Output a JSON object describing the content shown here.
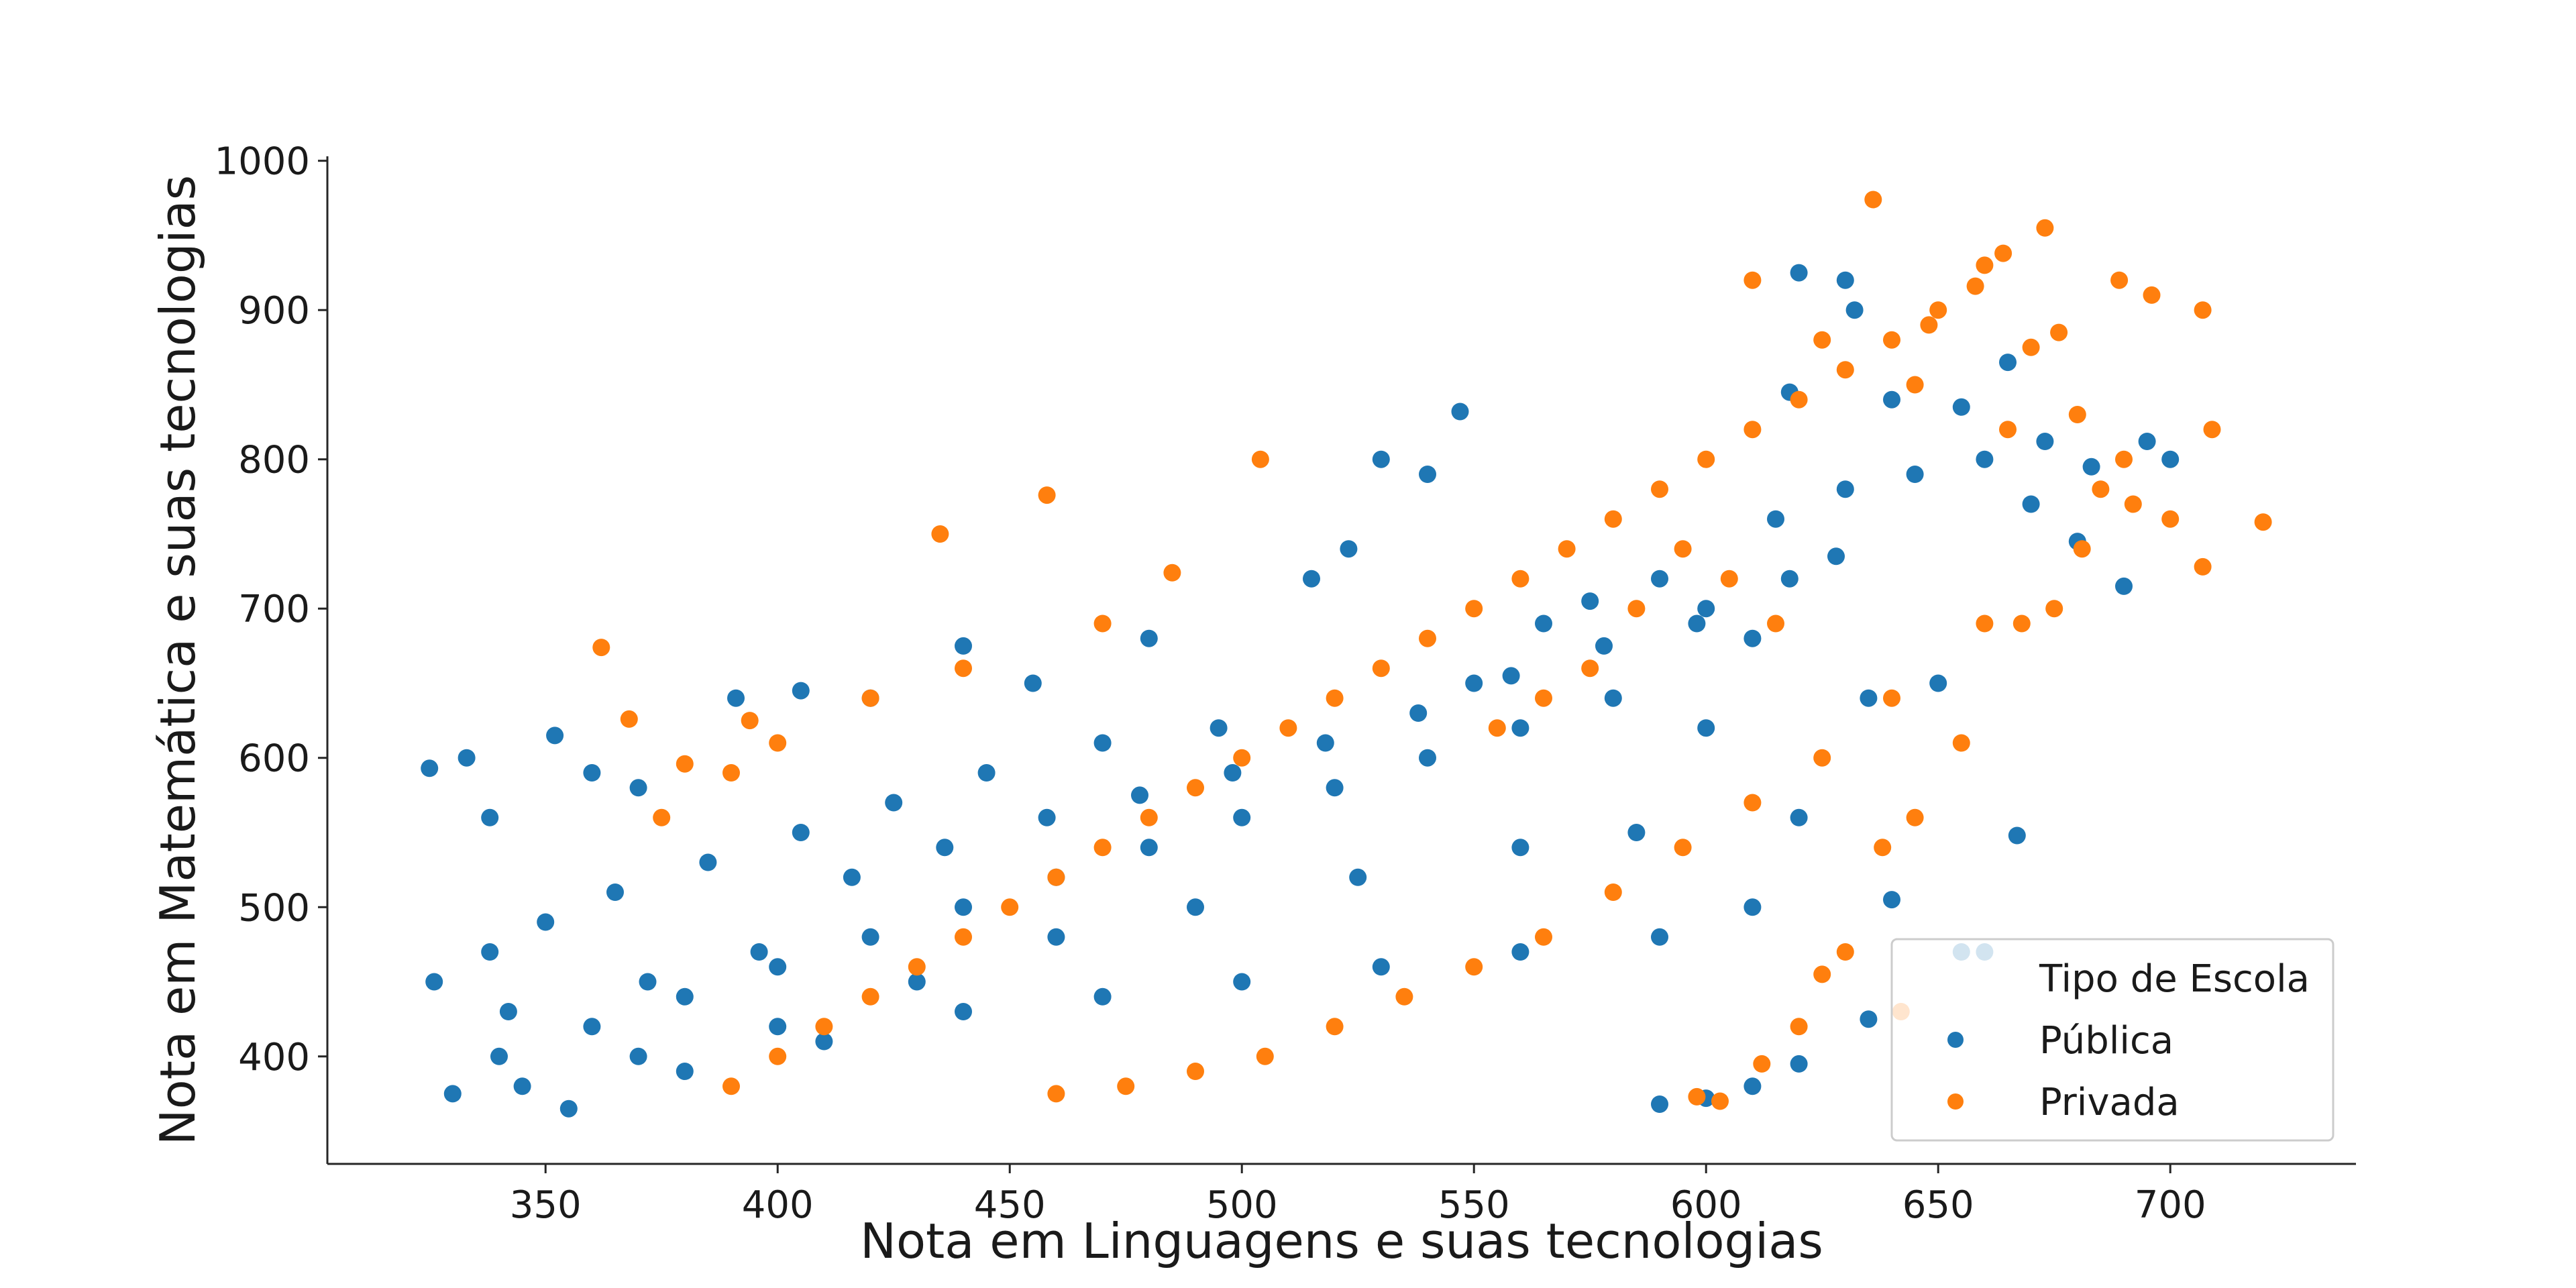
{
  "chart_data": {
    "type": "scatter",
    "title": "",
    "xlabel": "Nota em Linguagens e suas tecnologias",
    "ylabel": "Nota em Matemática e suas tecnologias",
    "xlim": [
      303,
      740
    ],
    "ylim": [
      328,
      1003
    ],
    "xticks": [
      350,
      400,
      450,
      500,
      550,
      600,
      650,
      700
    ],
    "yticks": [
      400,
      500,
      600,
      700,
      800,
      900,
      1000
    ],
    "grid": false,
    "legend": {
      "title": "Tipo de Escola",
      "placement": "lower-right",
      "entries": [
        "Pública",
        "Privada"
      ]
    },
    "series": [
      {
        "name": "Pública",
        "color": "#1f77b4",
        "points": [
          [
            325,
            593
          ],
          [
            333,
            600
          ],
          [
            338,
            560
          ],
          [
            352,
            615
          ],
          [
            360,
            590
          ],
          [
            370,
            580
          ],
          [
            391,
            640
          ],
          [
            405,
            645
          ],
          [
            420,
            640
          ],
          [
            440,
            675
          ],
          [
            455,
            650
          ],
          [
            480,
            680
          ],
          [
            515,
            720
          ],
          [
            523,
            740
          ],
          [
            540,
            790
          ],
          [
            530,
            800
          ],
          [
            547,
            832
          ],
          [
            620,
            925
          ],
          [
            630,
            920
          ],
          [
            632,
            900
          ],
          [
            655,
            470
          ],
          [
            660,
            470
          ],
          [
            667,
            548
          ],
          [
            640,
            505
          ],
          [
            635,
            425
          ],
          [
            585,
            550
          ],
          [
            560,
            540
          ],
          [
            525,
            520
          ],
          [
            490,
            500
          ],
          [
            460,
            480
          ],
          [
            430,
            450
          ],
          [
            400,
            420
          ],
          [
            370,
            400
          ],
          [
            345,
            380
          ],
          [
            330,
            375
          ],
          [
            355,
            365
          ],
          [
            380,
            390
          ],
          [
            410,
            410
          ],
          [
            440,
            430
          ],
          [
            470,
            440
          ],
          [
            500,
            450
          ],
          [
            530,
            460
          ],
          [
            560,
            470
          ],
          [
            590,
            480
          ],
          [
            610,
            500
          ],
          [
            620,
            560
          ],
          [
            600,
            620
          ],
          [
            580,
            640
          ],
          [
            560,
            620
          ],
          [
            540,
            600
          ],
          [
            520,
            580
          ],
          [
            500,
            560
          ],
          [
            480,
            540
          ],
          [
            460,
            520
          ],
          [
            440,
            500
          ],
          [
            420,
            480
          ],
          [
            400,
            460
          ],
          [
            380,
            440
          ],
          [
            360,
            420
          ],
          [
            340,
            400
          ],
          [
            600,
            700
          ],
          [
            615,
            760
          ],
          [
            630,
            780
          ],
          [
            645,
            790
          ],
          [
            660,
            800
          ],
          [
            670,
            770
          ],
          [
            680,
            745
          ],
          [
            690,
            715
          ],
          [
            700,
            800
          ],
          [
            650,
            650
          ],
          [
            635,
            640
          ],
          [
            610,
            680
          ],
          [
            590,
            720
          ],
          [
            575,
            705
          ],
          [
            565,
            690
          ],
          [
            550,
            650
          ],
          [
            495,
            620
          ],
          [
            470,
            610
          ],
          [
            445,
            590
          ],
          [
            425,
            570
          ],
          [
            405,
            550
          ],
          [
            385,
            530
          ],
          [
            365,
            510
          ],
          [
            350,
            490
          ],
          [
            338,
            470
          ],
          [
            326,
            450
          ],
          [
            342,
            430
          ],
          [
            372,
            450
          ],
          [
            396,
            470
          ],
          [
            416,
            520
          ],
          [
            436,
            540
          ],
          [
            458,
            560
          ],
          [
            478,
            575
          ],
          [
            498,
            590
          ],
          [
            518,
            610
          ],
          [
            538,
            630
          ],
          [
            558,
            655
          ],
          [
            578,
            675
          ],
          [
            598,
            690
          ],
          [
            618,
            720
          ],
          [
            628,
            735
          ],
          [
            618,
            845
          ],
          [
            640,
            840
          ],
          [
            655,
            835
          ],
          [
            665,
            865
          ],
          [
            673,
            812
          ],
          [
            683,
            795
          ],
          [
            695,
            812
          ],
          [
            620,
            395
          ],
          [
            610,
            380
          ],
          [
            600,
            372
          ],
          [
            590,
            368
          ]
        ]
      },
      {
        "name": "Privada",
        "color": "#ff7f0e",
        "points": [
          [
            362,
            674
          ],
          [
            368,
            626
          ],
          [
            380,
            596
          ],
          [
            394,
            625
          ],
          [
            435,
            750
          ],
          [
            458,
            776
          ],
          [
            504,
            800
          ],
          [
            485,
            724
          ],
          [
            470,
            690
          ],
          [
            440,
            660
          ],
          [
            420,
            640
          ],
          [
            400,
            610
          ],
          [
            390,
            590
          ],
          [
            375,
            560
          ],
          [
            636,
            974
          ],
          [
            673,
            955
          ],
          [
            707,
            900
          ],
          [
            696,
            910
          ],
          [
            689,
            920
          ],
          [
            720,
            758
          ],
          [
            709,
            820
          ],
          [
            707,
            728
          ],
          [
            700,
            760
          ],
          [
            690,
            800
          ],
          [
            680,
            830
          ],
          [
            670,
            875
          ],
          [
            660,
            930
          ],
          [
            650,
            900
          ],
          [
            640,
            880
          ],
          [
            630,
            860
          ],
          [
            620,
            840
          ],
          [
            610,
            820
          ],
          [
            600,
            800
          ],
          [
            590,
            780
          ],
          [
            580,
            760
          ],
          [
            570,
            740
          ],
          [
            560,
            720
          ],
          [
            550,
            700
          ],
          [
            540,
            680
          ],
          [
            530,
            660
          ],
          [
            520,
            640
          ],
          [
            510,
            620
          ],
          [
            500,
            600
          ],
          [
            490,
            580
          ],
          [
            480,
            560
          ],
          [
            470,
            540
          ],
          [
            460,
            520
          ],
          [
            450,
            500
          ],
          [
            440,
            480
          ],
          [
            430,
            460
          ],
          [
            420,
            440
          ],
          [
            410,
            420
          ],
          [
            400,
            400
          ],
          [
            390,
            380
          ],
          [
            610,
            920
          ],
          [
            625,
            880
          ],
          [
            645,
            850
          ],
          [
            665,
            820
          ],
          [
            685,
            780
          ],
          [
            675,
            700
          ],
          [
            660,
            690
          ],
          [
            640,
            640
          ],
          [
            625,
            600
          ],
          [
            610,
            570
          ],
          [
            595,
            540
          ],
          [
            580,
            510
          ],
          [
            565,
            480
          ],
          [
            550,
            460
          ],
          [
            535,
            440
          ],
          [
            520,
            420
          ],
          [
            505,
            400
          ],
          [
            490,
            390
          ],
          [
            475,
            380
          ],
          [
            460,
            375
          ],
          [
            645,
            560
          ],
          [
            638,
            540
          ],
          [
            630,
            470
          ],
          [
            625,
            455
          ],
          [
            620,
            420
          ],
          [
            612,
            395
          ],
          [
            603,
            370
          ],
          [
            598,
            373
          ],
          [
            642,
            430
          ],
          [
            655,
            610
          ],
          [
            668,
            690
          ],
          [
            681,
            740
          ],
          [
            692,
            770
          ],
          [
            676,
            885
          ],
          [
            664,
            938
          ],
          [
            658,
            916
          ],
          [
            648,
            890
          ],
          [
            615,
            690
          ],
          [
            605,
            720
          ],
          [
            595,
            740
          ],
          [
            585,
            700
          ],
          [
            575,
            660
          ],
          [
            565,
            640
          ],
          [
            555,
            620
          ]
        ]
      }
    ]
  }
}
